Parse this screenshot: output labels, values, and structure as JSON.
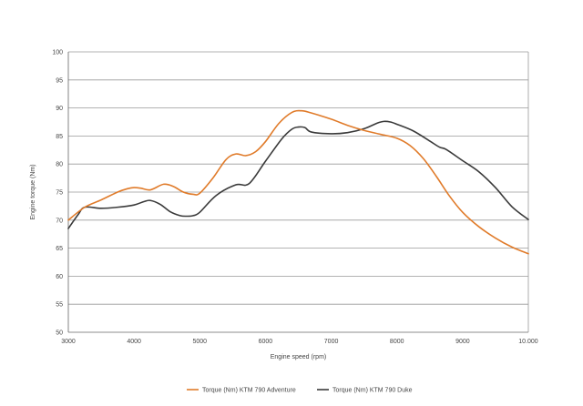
{
  "chart_data": {
    "type": "line",
    "xlabel": "Engine speed (rpm)",
    "ylabel": "Engine torque (Nm)",
    "xlim": [
      3000,
      10000
    ],
    "ylim": [
      50,
      100
    ],
    "x_ticks": [
      3000,
      4000,
      5000,
      6000,
      7000,
      8000,
      9000,
      10000
    ],
    "x_tick_labels": [
      "3000",
      "4000",
      "5000",
      "6000",
      "7000",
      "8000",
      "9000",
      "10.000"
    ],
    "y_ticks": [
      50,
      55,
      60,
      65,
      70,
      75,
      80,
      85,
      90,
      95,
      100
    ],
    "y_tick_labels": [
      "50",
      "55",
      "60",
      "65",
      "70",
      "75",
      "80",
      "85",
      "90",
      "95",
      "100"
    ],
    "grid": "horizontal",
    "legend_position": "bottom",
    "series": [
      {
        "name": "Torque (Nm) KTM 790 Adventure",
        "color": "#e07b2a",
        "x": [
          3000,
          3250,
          3500,
          3750,
          3900,
          4000,
          4100,
          4250,
          4450,
          4600,
          4750,
          4900,
          5000,
          5200,
          5400,
          5550,
          5700,
          5850,
          6000,
          6200,
          6400,
          6550,
          6700,
          7000,
          7250,
          7500,
          7750,
          8000,
          8200,
          8400,
          8600,
          8800,
          9000,
          9250,
          9500,
          9750,
          10000
        ],
        "y": [
          70.0,
          72.3,
          73.6,
          75.0,
          75.6,
          75.8,
          75.7,
          75.4,
          76.4,
          76.0,
          75.0,
          74.6,
          74.8,
          77.5,
          80.8,
          81.8,
          81.5,
          82.2,
          84.0,
          87.2,
          89.2,
          89.5,
          89.1,
          88.0,
          86.9,
          86.0,
          85.3,
          84.6,
          83.3,
          81.0,
          77.8,
          74.3,
          71.4,
          68.8,
          66.8,
          65.2,
          64.0
        ]
      },
      {
        "name": "Torque (Nm) KTM 790 Duke",
        "color": "#3a3a3a",
        "x": [
          3000,
          3150,
          3250,
          3500,
          3750,
          4000,
          4150,
          4250,
          4400,
          4550,
          4700,
          4800,
          4900,
          5000,
          5250,
          5550,
          5750,
          6000,
          6250,
          6400,
          6500,
          6600,
          6700,
          7000,
          7250,
          7500,
          7700,
          7800,
          7900,
          8000,
          8250,
          8500,
          8650,
          8750,
          9000,
          9250,
          9500,
          9750,
          10000
        ],
        "y": [
          68.5,
          71.0,
          72.3,
          72.1,
          72.3,
          72.7,
          73.3,
          73.5,
          72.8,
          71.5,
          70.8,
          70.7,
          70.8,
          71.4,
          74.4,
          76.3,
          76.5,
          80.5,
          84.5,
          86.2,
          86.6,
          86.5,
          85.7,
          85.4,
          85.6,
          86.3,
          87.3,
          87.6,
          87.5,
          87.1,
          85.9,
          84.1,
          83.0,
          82.6,
          80.6,
          78.6,
          75.8,
          72.4,
          70.1
        ]
      }
    ]
  }
}
